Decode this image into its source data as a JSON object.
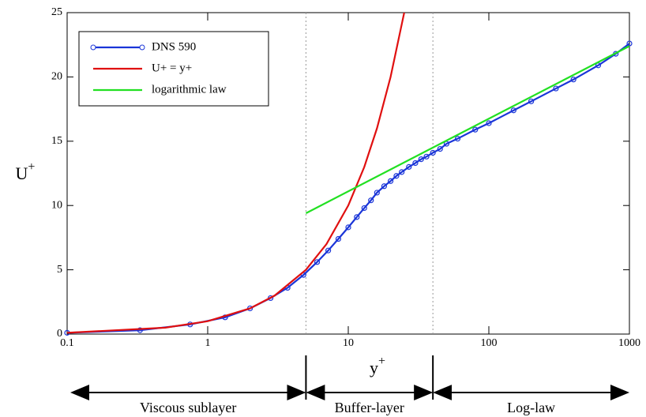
{
  "chart_data": {
    "type": "line",
    "xlabel": {
      "text": "y",
      "superscript": "+"
    },
    "ylabel": {
      "text": "U",
      "superscript": "+"
    },
    "xscale": "log",
    "xlim": [
      0.1,
      1000
    ],
    "ylim": [
      0,
      25
    ],
    "xticks": [
      0.1,
      1,
      10,
      100,
      1000
    ],
    "yticks": [
      0,
      5,
      10,
      15,
      20,
      25
    ],
    "legend": "upper left",
    "series": [
      {
        "name": "DNS 590",
        "color": "#1a35d8",
        "markers": true,
        "x": [
          0.1,
          0.33,
          0.75,
          1.33,
          2,
          2.8,
          3.7,
          4.8,
          6,
          7.2,
          8.5,
          10,
          11.5,
          13,
          14.5,
          16,
          18,
          20,
          22,
          24,
          27,
          30,
          33,
          36,
          40,
          45,
          50,
          60,
          80,
          100,
          150,
          200,
          300,
          400,
          600,
          800,
          1000
        ],
        "values": [
          0.1,
          0.3,
          0.75,
          1.3,
          2.0,
          2.8,
          3.6,
          4.6,
          5.6,
          6.5,
          7.4,
          8.3,
          9.1,
          9.8,
          10.4,
          11.0,
          11.5,
          11.9,
          12.3,
          12.6,
          13.0,
          13.3,
          13.6,
          13.8,
          14.1,
          14.4,
          14.8,
          15.2,
          15.9,
          16.4,
          17.4,
          18.1,
          19.1,
          19.8,
          20.9,
          21.8,
          22.6
        ]
      },
      {
        "name": "U+ = y+",
        "color": "#e01010",
        "markers": false,
        "x": [
          0.1,
          0.5,
          1,
          2,
          3,
          5,
          7,
          10,
          13,
          16,
          20,
          25
        ],
        "values": [
          0.1,
          0.5,
          1,
          2,
          3,
          5,
          7,
          10,
          13,
          16,
          20,
          25
        ]
      },
      {
        "name": "logarithmic law",
        "color": "#22e022",
        "markers": false,
        "x": [
          5,
          1000
        ],
        "values": [
          9.4,
          22.4
        ]
      }
    ],
    "vlines": [
      5,
      40
    ],
    "regions": [
      "Viscous sublayer",
      "Buffer-layer",
      "Log-law"
    ]
  }
}
